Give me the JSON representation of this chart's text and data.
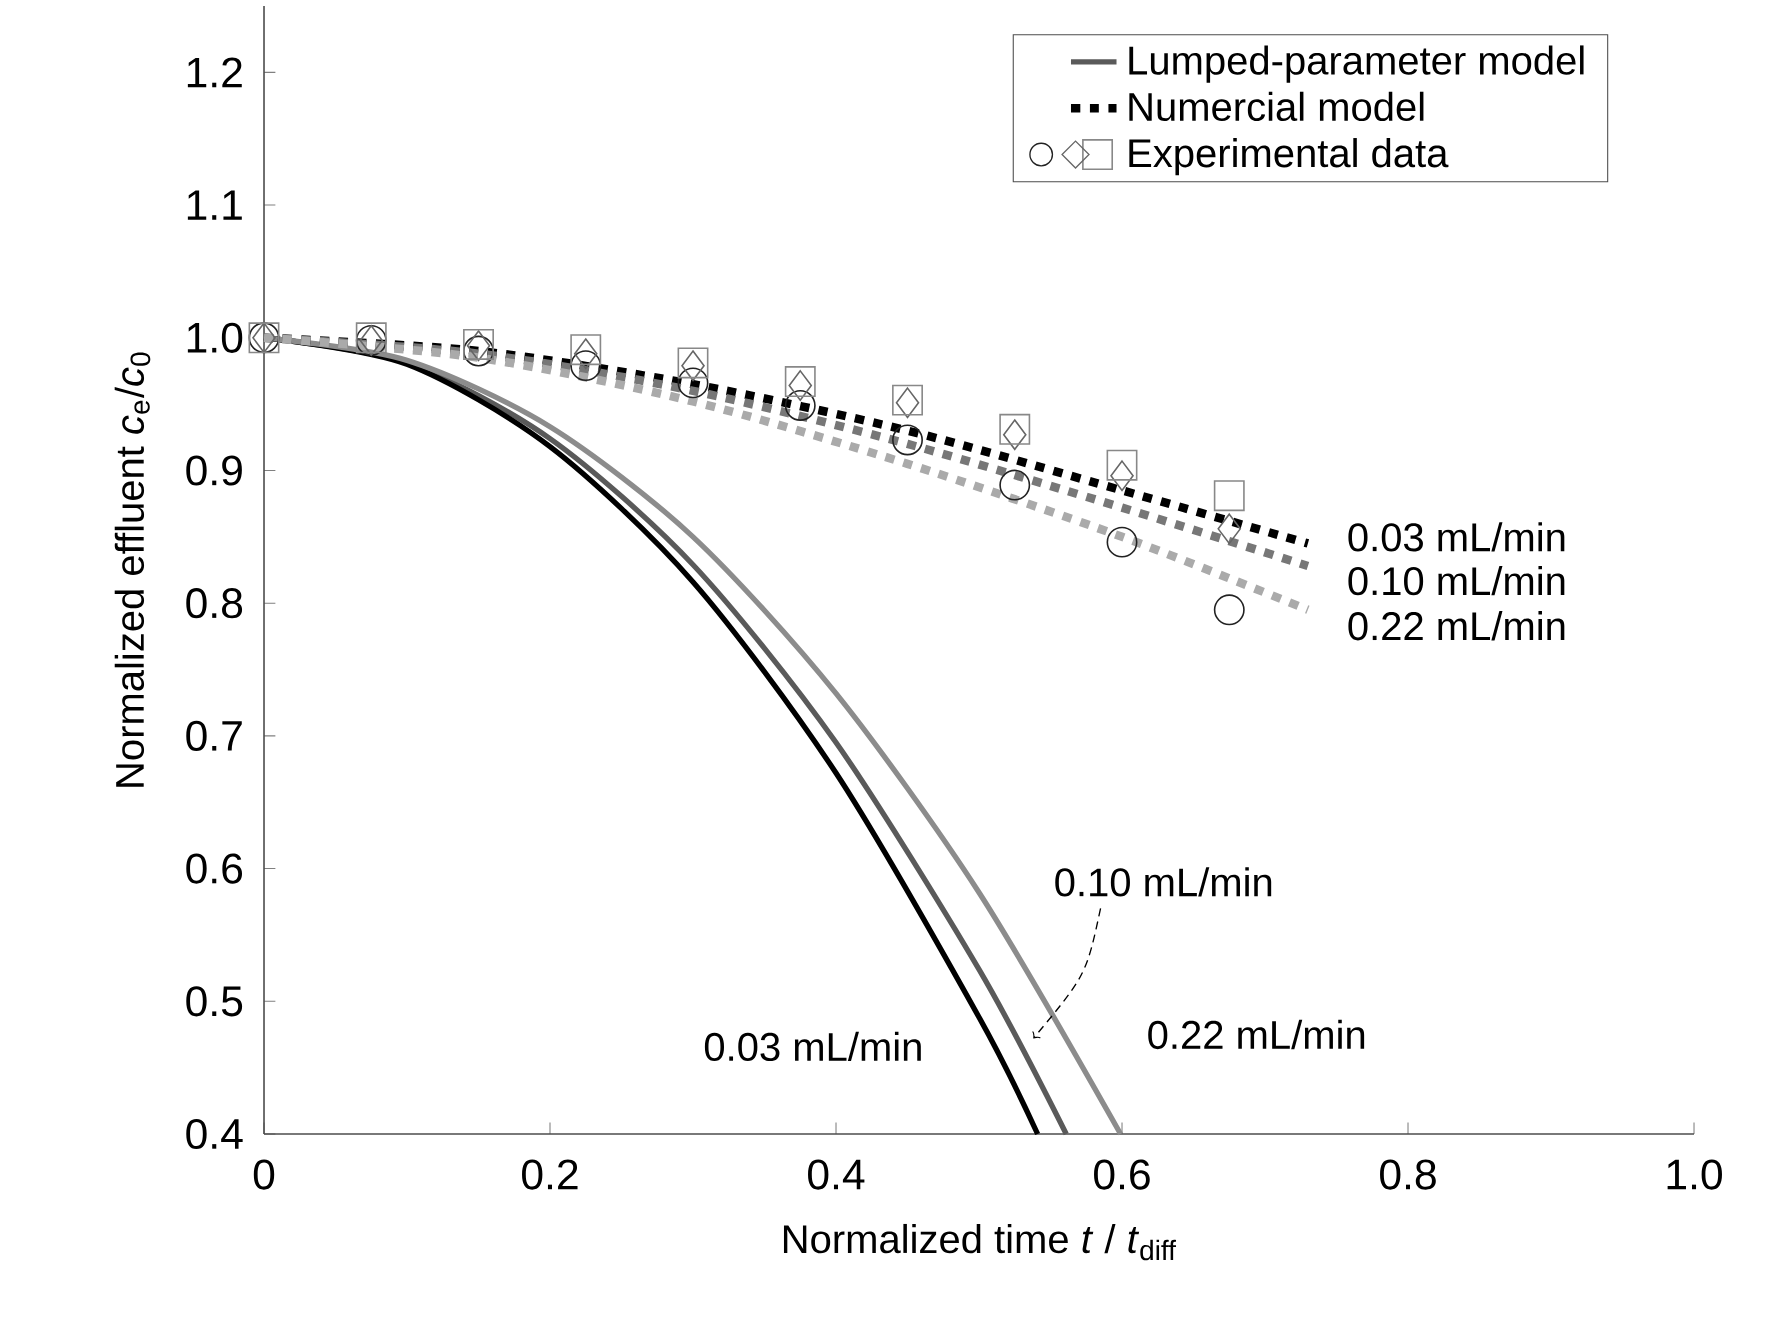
{
  "chart_data": {
    "type": "line",
    "xlabel": "Normalized time *t* / *t*$_{diff}$",
    "ylabel": "Normalized effluent *c*$_{e}$/*c*$_{0}$",
    "xlim": [
      0,
      1
    ],
    "ylim": [
      0.4,
      1.25
    ],
    "xticks": [
      0,
      0.2,
      0.4,
      0.6,
      0.8,
      {
        "value": 1,
        "label": "1.0"
      }
    ],
    "yticks": [
      0.4,
      0.5,
      0.6,
      0.7,
      0.8,
      0.9,
      {
        "value": 1,
        "label": "1.0"
      },
      1.1,
      1.2
    ],
    "grid": false,
    "legend": "top right",
    "series": [
      {
        "name": "Lumped-parameter model",
        "color": "#5a5a5a",
        "line_style": "solid",
        "marker": "none",
        "x": [
          0,
          0.1,
          0.2,
          0.3,
          0.4,
          0.5,
          0.561
        ],
        "values": [
          1,
          0.981,
          0.924,
          0.829,
          0.695,
          0.524,
          0.4
        ]
      },
      {
        "color": "#000000",
        "line_style": "solid",
        "marker": "none",
        "x": [
          0,
          0.1,
          0.2,
          0.3,
          0.4,
          0.5,
          0.541
        ],
        "values": [
          1,
          0.98,
          0.918,
          0.816,
          0.672,
          0.488,
          0.4
        ]
      },
      {
        "color": "#8c8c8c",
        "line_style": "solid",
        "marker": "none",
        "x": [
          0,
          0.1,
          0.2,
          0.3,
          0.4,
          0.5,
          0.599
        ],
        "values": [
          1,
          0.983,
          0.933,
          0.85,
          0.732,
          0.582,
          0.4
        ]
      },
      {
        "name": "Numercial model",
        "color": "#000000",
        "line_style": "dotted",
        "marker": "none",
        "x": [
          0,
          0.15,
          0.3,
          0.45,
          0.6,
          0.73
        ],
        "values": [
          1,
          0.99,
          0.965,
          0.93,
          0.885,
          0.845
        ]
      },
      {
        "color": "#777777",
        "line_style": "dotted",
        "marker": "none",
        "x": [
          0,
          0.15,
          0.3,
          0.45,
          0.6,
          0.73
        ],
        "values": [
          1,
          0.988,
          0.96,
          0.92,
          0.872,
          0.828
        ]
      },
      {
        "color": "#aaaaaa",
        "line_style": "dotted",
        "marker": "none",
        "x": [
          0,
          0.15,
          0.3,
          0.45,
          0.6,
          0.73
        ],
        "values": [
          1,
          0.985,
          0.952,
          0.905,
          0.85,
          0.795
        ]
      },
      {
        "type": "scatter",
        "color": "#222222",
        "marker": "circle",
        "x": [
          0,
          0.075,
          0.15,
          0.225,
          0.3,
          0.375,
          0.45,
          0.525,
          0.6,
          0.675
        ],
        "values": [
          1,
          0.998,
          0.99,
          0.979,
          0.966,
          0.949,
          0.923,
          0.889,
          0.846,
          0.795
        ]
      },
      {
        "type": "scatter",
        "color": "#666666",
        "marker": "diamond",
        "x": [
          0,
          0.075,
          0.15,
          0.225,
          0.3,
          0.375,
          0.45,
          0.525,
          0.6,
          0.675
        ],
        "values": [
          1,
          0.998,
          0.994,
          0.988,
          0.979,
          0.964,
          0.951,
          0.927,
          0.896,
          0.856
        ]
      },
      {
        "name": "Experimental data",
        "type": "scatter",
        "color": "#888888",
        "marker": "square",
        "x": [
          0,
          0.075,
          0.15,
          0.225,
          0.3,
          0.375,
          0.45,
          0.525,
          0.6,
          0.675
        ],
        "values": [
          1,
          1,
          0.995,
          0.991,
          0.981,
          0.967,
          0.953,
          0.931,
          0.904,
          0.881
        ]
      }
    ],
    "annotations": [
      "0.03 mL/min",
      "0.10 mL/min",
      "0.22 mL/min",
      "0.10 mL/min",
      "0.22 mL/min",
      "0.03 mL/min"
    ]
  }
}
